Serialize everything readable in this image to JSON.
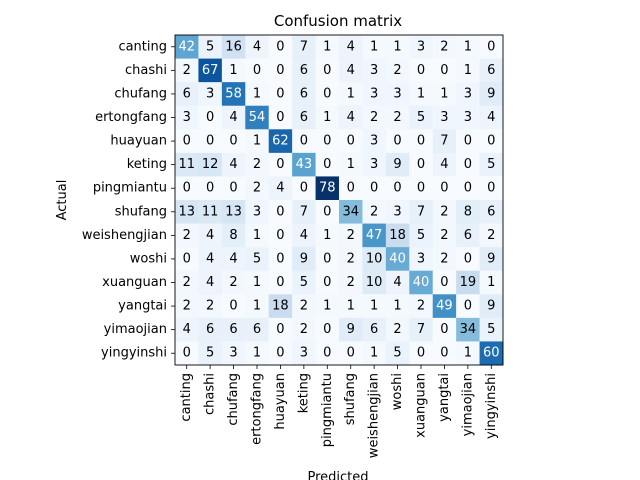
{
  "chart_data": {
    "type": "heatmap",
    "title": "Confusion matrix",
    "xlabel": "Predicted",
    "ylabel": "Actual",
    "colormap": "Blues",
    "grid": false,
    "classes": [
      "canting",
      "chashi",
      "chufang",
      "ertongfang",
      "huayuan",
      "keting",
      "pingmiantu",
      "shufang",
      "weishengjian",
      "woshi",
      "xuanguan",
      "yangtai",
      "yimaojian",
      "yingyinshi"
    ],
    "matrix": [
      [
        42,
        5,
        16,
        4,
        0,
        7,
        1,
        4,
        1,
        1,
        3,
        2,
        1,
        0
      ],
      [
        2,
        67,
        1,
        0,
        0,
        6,
        0,
        4,
        3,
        2,
        0,
        0,
        1,
        6
      ],
      [
        6,
        3,
        58,
        1,
        0,
        6,
        0,
        1,
        3,
        3,
        1,
        1,
        3,
        9
      ],
      [
        3,
        0,
        4,
        54,
        0,
        6,
        1,
        4,
        2,
        2,
        5,
        3,
        3,
        4
      ],
      [
        0,
        0,
        0,
        1,
        62,
        0,
        0,
        0,
        3,
        0,
        0,
        7,
        0,
        0
      ],
      [
        11,
        12,
        4,
        2,
        0,
        43,
        0,
        1,
        3,
        9,
        0,
        4,
        0,
        5
      ],
      [
        0,
        0,
        0,
        2,
        4,
        0,
        78,
        0,
        0,
        0,
        0,
        0,
        0,
        0
      ],
      [
        13,
        11,
        13,
        3,
        0,
        7,
        0,
        34,
        2,
        3,
        7,
        2,
        8,
        6
      ],
      [
        2,
        4,
        8,
        1,
        0,
        4,
        1,
        2,
        47,
        18,
        5,
        2,
        6,
        2
      ],
      [
        0,
        4,
        4,
        5,
        0,
        9,
        0,
        2,
        10,
        40,
        3,
        2,
        0,
        9
      ],
      [
        2,
        4,
        2,
        1,
        0,
        5,
        0,
        2,
        10,
        4,
        40,
        0,
        19,
        1
      ],
      [
        2,
        2,
        0,
        1,
        18,
        2,
        1,
        1,
        1,
        1,
        2,
        49,
        0,
        9
      ],
      [
        4,
        6,
        6,
        6,
        0,
        2,
        0,
        9,
        6,
        2,
        7,
        0,
        34,
        5
      ],
      [
        0,
        5,
        3,
        1,
        0,
        3,
        0,
        0,
        1,
        5,
        0,
        0,
        1,
        60
      ]
    ]
  }
}
